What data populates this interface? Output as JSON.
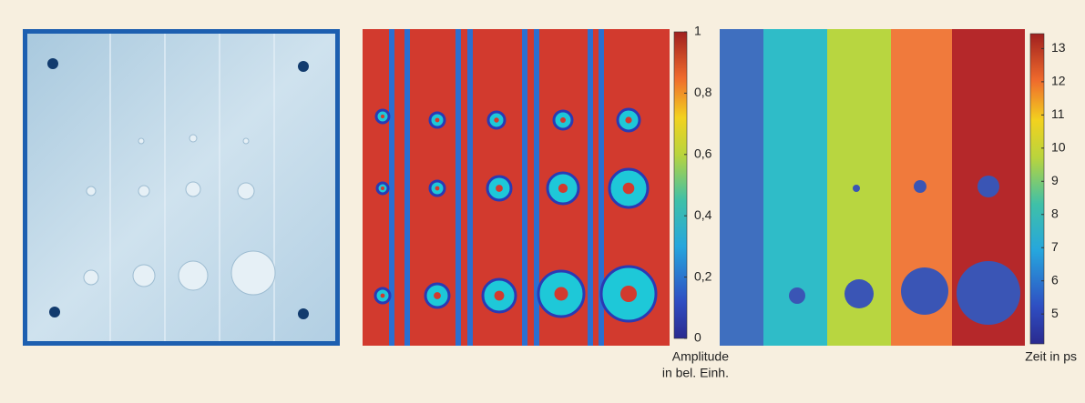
{
  "colorbars": [
    {
      "label_lines": [
        "Amplitude",
        "in bel. Einh."
      ],
      "lim": [
        0,
        1
      ],
      "ticks": [
        0,
        {
          "value": 0.2,
          "label": "0,2"
        },
        {
          "value": 0.4,
          "label": "0,4"
        },
        {
          "value": 0.6,
          "label": "0,6"
        },
        {
          "value": 0.8,
          "label": "0,8"
        },
        1
      ]
    },
    {
      "label_lines": [
        "Zeit in ps"
      ],
      "lim": [
        4.1,
        13.45
      ],
      "ticks": [
        5,
        6,
        7,
        8,
        9,
        10,
        11,
        12,
        13
      ]
    }
  ]
}
